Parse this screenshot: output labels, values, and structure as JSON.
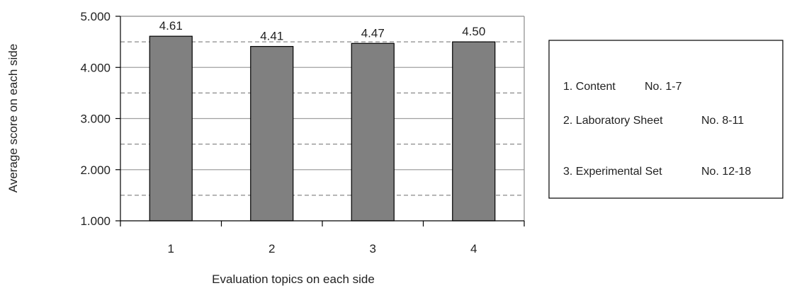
{
  "chart_data": {
    "type": "bar",
    "categories": [
      "1",
      "2",
      "3",
      "4"
    ],
    "values": [
      4.61,
      4.41,
      4.47,
      4.5
    ],
    "data_labels": [
      "4.61",
      "4.41",
      "4.47",
      "4.50"
    ],
    "xlabel": "Evaluation topics on each side",
    "ylabel": "Average score on each side",
    "ylim": [
      1,
      5
    ],
    "yticks": [
      1,
      2,
      3,
      4,
      5
    ],
    "ytick_labels": [
      "1.000",
      "2.000",
      "3.000",
      "4.000",
      "5.000"
    ],
    "grid": true,
    "grid_solid_at": [
      2,
      3,
      4
    ],
    "grid_dashed_at": [
      1.5,
      2.5,
      3.5,
      4.5
    ],
    "bar_color": "#808080",
    "bar_edge_color": "#000000",
    "solid_grid_color": "#a0a0a0",
    "dashed_grid_color": "#8a8a8a"
  },
  "legend_box": {
    "position": "right",
    "items": [
      {
        "text": "1. Content",
        "no": "No. 1-7"
      },
      {
        "text": "2. Laboratory Sheet",
        "no": "No. 8-11"
      },
      {
        "text": "3. Experimental Set",
        "no": "No. 12-18"
      }
    ]
  }
}
